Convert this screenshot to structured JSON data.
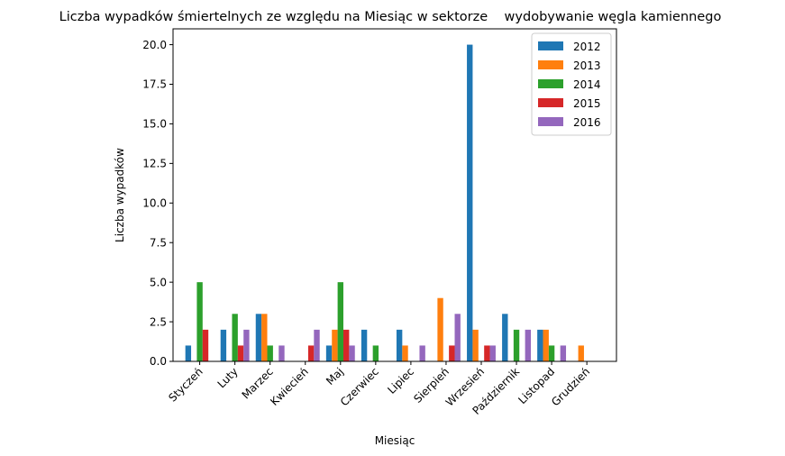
{
  "chart_data": {
    "type": "bar",
    "title": "Liczba wypadków śmiertelnych ze względu na Miesiąc w sektorze    wydobywanie węgla kamiennego",
    "xlabel": "Miesiąc",
    "ylabel": "Liczba wypadków",
    "ylim": [
      0,
      21
    ],
    "yticks": [
      "0.0",
      "2.5",
      "5.0",
      "7.5",
      "10.0",
      "12.5",
      "15.0",
      "17.5",
      "20.0"
    ],
    "ytick_values": [
      0,
      2.5,
      5,
      7.5,
      10,
      12.5,
      15,
      17.5,
      20
    ],
    "grid": false,
    "legend_position": "top-right",
    "categories": [
      "Styczeń",
      "Luty",
      "Marzec",
      "Kwiecień",
      "Maj",
      "Czerwiec",
      "Lipiec",
      "Sierpień",
      "Wrzesień",
      "Październik",
      "Listopad",
      "Grudzień"
    ],
    "series": [
      {
        "name": "2012",
        "color": "#1f77b4",
        "values": [
          1,
          2,
          3,
          0,
          1,
          2,
          2,
          0,
          20,
          3,
          2,
          0
        ]
      },
      {
        "name": "2013",
        "color": "#ff7f0e",
        "values": [
          0,
          0,
          3,
          0,
          2,
          0,
          1,
          4,
          2,
          0,
          2,
          1
        ]
      },
      {
        "name": "2014",
        "color": "#2ca02c",
        "values": [
          5,
          3,
          1,
          0,
          5,
          1,
          0,
          0,
          0,
          2,
          1,
          0
        ]
      },
      {
        "name": "2015",
        "color": "#d62728",
        "values": [
          2,
          1,
          0,
          1,
          2,
          0,
          0,
          1,
          1,
          0,
          0,
          0
        ]
      },
      {
        "name": "2016",
        "color": "#9467bd",
        "values": [
          0,
          2,
          1,
          2,
          1,
          0,
          1,
          3,
          1,
          2,
          1,
          0
        ]
      }
    ]
  }
}
